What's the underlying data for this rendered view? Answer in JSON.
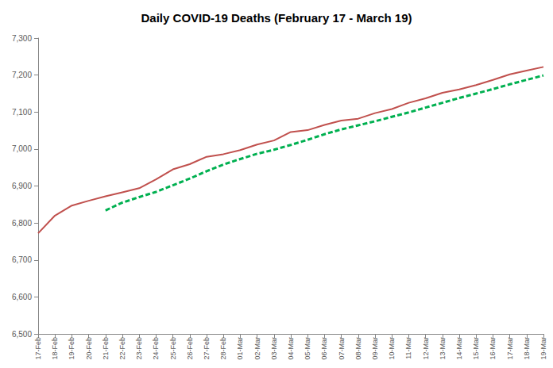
{
  "chart_data": {
    "type": "line",
    "title": "Daily COVID-19 Deaths (February 17 - March 19)",
    "categories": [
      "17-Feb",
      "18-Feb",
      "19-Feb",
      "20-Feb",
      "21-Feb",
      "22-Feb",
      "23-Feb",
      "24-Feb",
      "25-Feb",
      "26-Feb",
      "27-Feb",
      "28-Feb",
      "01-Mar",
      "02-Mar",
      "03-Mar",
      "04-Mar",
      "05-Mar",
      "06-Mar",
      "07-Mar",
      "08-Mar",
      "09-Mar",
      "10-Mar",
      "11-Mar",
      "12-Mar",
      "13-Mar",
      "14-Mar",
      "15-Mar",
      "16-Mar",
      "17-Mar",
      "18-Mar",
      "19-Mar"
    ],
    "series": [
      {
        "color": "#c0504d",
        "line_style": "solid",
        "values": [
          6772,
          6820,
          6847,
          6860,
          6872,
          6883,
          6894,
          6918,
          6945,
          6959,
          6979,
          6986,
          6997,
          7012,
          7023,
          7046,
          7051,
          7065,
          7077,
          7082,
          7097,
          7108,
          7125,
          7137,
          7152,
          7161,
          7173,
          7187,
          7202,
          7212,
          7222
        ]
      },
      {
        "color": "#00b050",
        "line_style": "dashed",
        "values": [
          null,
          null,
          null,
          null,
          6834,
          6855,
          6870,
          6884,
          6902,
          6920,
          6940,
          6958,
          6973,
          6987,
          6998,
          7011,
          7025,
          7040,
          7053,
          7064,
          7075,
          7087,
          7099,
          7112,
          7125,
          7138,
          7150,
          7162,
          7175,
          7187,
          7199
        ]
      }
    ],
    "ylim": [
      6500,
      7300
    ],
    "yticks": [
      {
        "value": 6500,
        "label": "6,500"
      },
      {
        "value": 6600,
        "label": "6,600"
      },
      {
        "value": 6700,
        "label": "6,700"
      },
      {
        "value": 6800,
        "label": "6,800"
      },
      {
        "value": 6900,
        "label": "6,900"
      },
      {
        "value": 7000,
        "label": "7,000"
      },
      {
        "value": 7100,
        "label": "7,100"
      },
      {
        "value": 7200,
        "label": "7,200"
      },
      {
        "value": 7300,
        "label": "7,300"
      }
    ],
    "grid": false
  }
}
